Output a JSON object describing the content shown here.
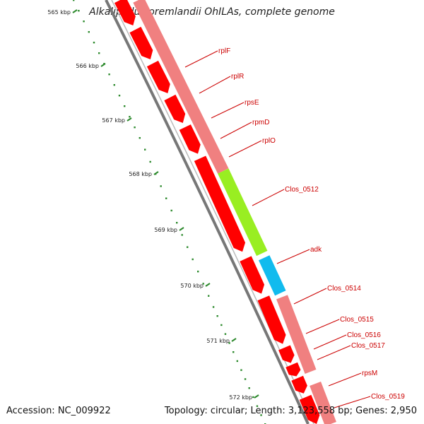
{
  "title": "Alkaliphilus oremlandii OhILAs, complete genome",
  "footer": {
    "accession": "Accession: NC_009922",
    "stats": "Topology: circular; Length: 3,123,558 bp; Genes: 2,950"
  },
  "colors": {
    "cds": "#ff0000",
    "cds_band": "#f08080",
    "highlight_green": "#99ee22",
    "highlight_blue": "#11bbee",
    "ruler": "#2d8a2d",
    "label": "#cc0000",
    "backbone": "#777777"
  },
  "ruler_ticks": [
    "565 kbp",
    "566 kbp",
    "567 kbp",
    "568 kbp",
    "569 kbp",
    "570 kbp",
    "571 kbp",
    "572 kbp"
  ],
  "gene_labels": [
    "rplF",
    "rplR",
    "rpsE",
    "rpmD",
    "rplO",
    "Clos_0512",
    "adk",
    "Clos_0514",
    "Clos_0515",
    "Clos_0516",
    "Clos_0517",
    "rpsM",
    "Clos_0519"
  ]
}
